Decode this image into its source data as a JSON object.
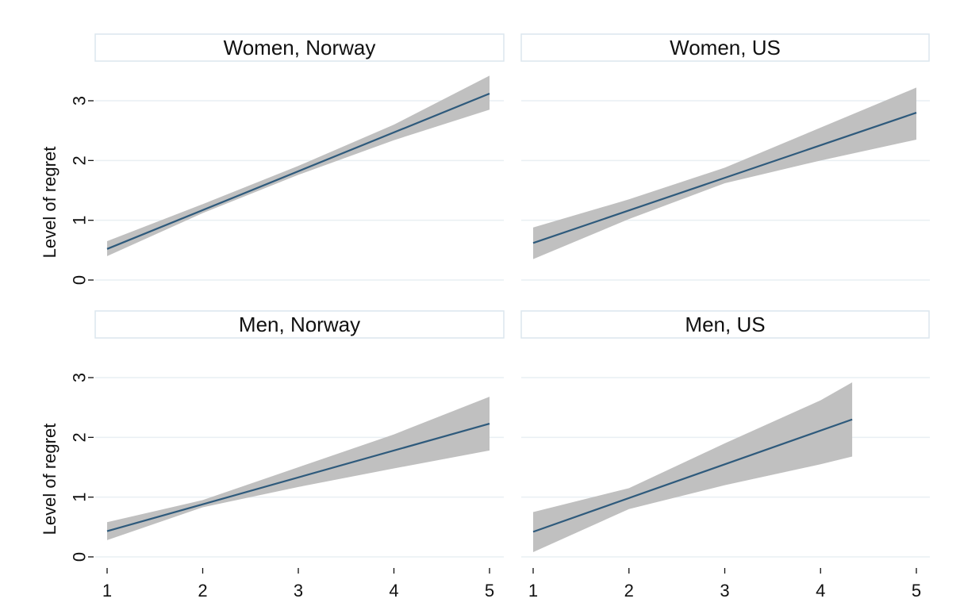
{
  "chart_data": {
    "type": "line",
    "layout": "2x2 facets",
    "grid": true,
    "xlim": [
      1,
      5
    ],
    "ylim": [
      0,
      3
    ],
    "x_ticks": [
      1,
      2,
      3,
      4,
      5
    ],
    "y_ticks": [
      0,
      1,
      2,
      3
    ],
    "ylabel": "Level of regret",
    "xlabel": "",
    "colors": {
      "line": "#2e5a7c",
      "band": "#c0c0c0"
    },
    "panels": [
      {
        "title": "Women, Norway",
        "series": [
          {
            "x": [
              1,
              5
            ],
            "y": [
              0.52,
              3.12
            ],
            "ci_x": [
              1,
              2,
              3,
              4,
              5
            ],
            "ci_lower": [
              0.4,
              1.12,
              1.76,
              2.34,
              2.85
            ],
            "ci_upper": [
              0.65,
              1.27,
              1.91,
              2.6,
              3.42
            ]
          }
        ]
      },
      {
        "title": "Women, US",
        "series": [
          {
            "x": [
              1,
              5
            ],
            "y": [
              0.62,
              2.8
            ],
            "ci_x": [
              1,
              2,
              3,
              4,
              5
            ],
            "ci_lower": [
              0.35,
              1.02,
              1.62,
              2.0,
              2.35
            ],
            "ci_upper": [
              0.88,
              1.35,
              1.88,
              2.55,
              3.22
            ]
          }
        ]
      },
      {
        "title": "Men, Norway",
        "series": [
          {
            "x": [
              1,
              5
            ],
            "y": [
              0.43,
              2.23
            ],
            "ci_x": [
              1,
              2,
              3,
              4,
              5
            ],
            "ci_lower": [
              0.28,
              0.83,
              1.17,
              1.48,
              1.78
            ],
            "ci_upper": [
              0.58,
              0.95,
              1.5,
              2.05,
              2.68
            ]
          }
        ]
      },
      {
        "title": "Men, US",
        "series": [
          {
            "x": [
              1,
              4.33
            ],
            "y": [
              0.42,
              2.3
            ],
            "ci_x": [
              1,
              2,
              3,
              4,
              4.33
            ],
            "ci_lower": [
              0.08,
              0.8,
              1.2,
              1.55,
              1.68
            ],
            "ci_upper": [
              0.75,
              1.15,
              1.9,
              2.62,
              2.92
            ]
          }
        ]
      }
    ]
  }
}
